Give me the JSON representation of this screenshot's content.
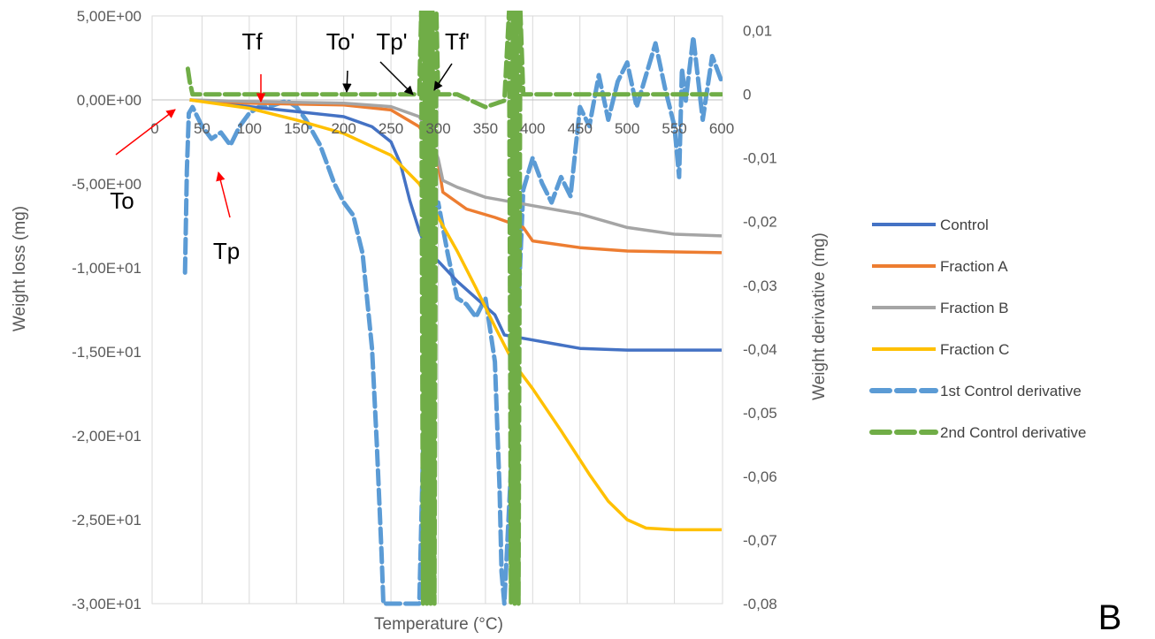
{
  "chart_data": {
    "type": "line",
    "panel_label": "B",
    "xlabel": "Temperature (°C)",
    "ylabel_left": "Weight loss (mg)",
    "ylabel_right": "Weight derivative (mg)",
    "xlim": [
      0,
      600
    ],
    "ylim_left": [
      -30,
      5
    ],
    "ylim_right": [
      -0.08,
      0.013
    ],
    "x_ticks": [
      "0",
      "50",
      "100",
      "150",
      "200",
      "250",
      "300",
      "350",
      "400",
      "450",
      "500",
      "550",
      "600"
    ],
    "y_left_ticks": [
      "5,00E+00",
      "0,00E+00",
      "-5,00E+00",
      "-1,00E+01",
      "-1,50E+01",
      "-2,00E+01",
      "-2,50E+01",
      "-3,00E+01"
    ],
    "y_right_ticks": [
      "0,01",
      "0",
      "-0,01",
      "-0,02",
      "-0,03",
      "-0,04",
      "-0,05",
      "-0,06",
      "-0,07",
      "-0,08"
    ],
    "grid": "vertical",
    "legend_position": "right",
    "series": [
      {
        "name": "Control",
        "axis": "left",
        "color": "#4472C4",
        "style": "solid",
        "x": [
          37,
          100,
          150,
          200,
          230,
          250,
          260,
          270,
          280,
          290,
          300,
          320,
          340,
          360,
          370,
          400,
          450,
          500,
          550,
          600
        ],
        "y": [
          0,
          -0.4,
          -0.7,
          -1.0,
          -1.6,
          -2.5,
          -3.8,
          -6.0,
          -7.8,
          -9.2,
          -9.6,
          -10.8,
          -11.8,
          -12.8,
          -14.0,
          -14.3,
          -14.8,
          -14.9,
          -14.9,
          -14.9
        ]
      },
      {
        "name": "Fraction A",
        "axis": "left",
        "color": "#ED7D31",
        "style": "solid",
        "x": [
          37,
          100,
          200,
          250,
          280,
          290,
          300,
          305,
          330,
          360,
          390,
          400,
          450,
          500,
          600
        ],
        "y": [
          0,
          -0.2,
          -0.3,
          -0.6,
          -1.6,
          -2.5,
          -3.8,
          -5.5,
          -6.5,
          -7.0,
          -7.6,
          -8.4,
          -8.8,
          -9.0,
          -9.1
        ]
      },
      {
        "name": "Fraction B",
        "axis": "left",
        "color": "#A5A5A5",
        "style": "solid",
        "x": [
          37,
          100,
          200,
          250,
          280,
          290,
          300,
          305,
          320,
          350,
          400,
          450,
          500,
          550,
          600
        ],
        "y": [
          0,
          -0.1,
          -0.2,
          -0.4,
          -1.0,
          -2.0,
          -3.5,
          -4.8,
          -5.2,
          -5.8,
          -6.3,
          -6.8,
          -7.6,
          -8.0,
          -8.1
        ]
      },
      {
        "name": "Fraction C",
        "axis": "left",
        "color": "#FFC000",
        "style": "solid",
        "x": [
          37,
          100,
          150,
          200,
          250,
          280,
          300,
          320,
          340,
          360,
          380,
          400,
          430,
          460,
          480,
          500,
          520,
          550,
          600
        ],
        "y": [
          0,
          -0.5,
          -1.2,
          -2.0,
          -3.3,
          -5.0,
          -7.0,
          -9.0,
          -11.2,
          -13.5,
          -15.7,
          -17.2,
          -19.7,
          -22.3,
          -23.9,
          -25.0,
          -25.5,
          -25.6,
          -25.6
        ]
      },
      {
        "name": "1st Control derivative",
        "axis": "right",
        "color": "#5B9BD5",
        "style": "dashed",
        "x": [
          32,
          34,
          36,
          40,
          50,
          60,
          70,
          80,
          90,
          100,
          110,
          120,
          140,
          150,
          160,
          175,
          190,
          200,
          210,
          220,
          230,
          235,
          240,
          242,
          250,
          260,
          270,
          280,
          290,
          300,
          310,
          320,
          330,
          340,
          350,
          360,
          362,
          365,
          367,
          370,
          375,
          380,
          390,
          400,
          410,
          420,
          430,
          440,
          450,
          460,
          470,
          480,
          490,
          500,
          510,
          520,
          530,
          540,
          550,
          555,
          558,
          562,
          570,
          580,
          590,
          600
        ],
        "y": [
          -0.028,
          -0.012,
          -0.003,
          -0.002,
          -0.005,
          -0.007,
          -0.006,
          -0.008,
          -0.005,
          -0.003,
          -0.002,
          -0.002,
          -0.001,
          -0.002,
          -0.004,
          -0.008,
          -0.014,
          -0.017,
          -0.019,
          -0.025,
          -0.04,
          -0.055,
          -0.072,
          -0.08,
          -0.08,
          -0.08,
          -0.08,
          -0.08,
          -0.02,
          -0.017,
          -0.025,
          -0.032,
          -0.033,
          -0.035,
          -0.032,
          -0.042,
          -0.05,
          -0.062,
          -0.075,
          -0.08,
          -0.065,
          -0.05,
          -0.015,
          -0.01,
          -0.014,
          -0.017,
          -0.013,
          -0.016,
          -0.002,
          -0.005,
          0.003,
          -0.004,
          0.002,
          0.005,
          -0.002,
          0.003,
          0.008,
          0.001,
          -0.005,
          -0.013,
          0.004,
          -0.001,
          0.009,
          -0.004,
          0.006,
          0.002
        ]
      },
      {
        "name": "2nd Control derivative",
        "axis": "right",
        "color": "#70AD47",
        "style": "dashed",
        "x": [
          35,
          37,
          40,
          50,
          100,
          150,
          200,
          250,
          270,
          280,
          282,
          284,
          286,
          288,
          290,
          292,
          294,
          296,
          298,
          300,
          320,
          350,
          370,
          375,
          377,
          379,
          381,
          383,
          385,
          387,
          390,
          400,
          450,
          500,
          550,
          600
        ],
        "y": [
          0.004,
          0.002,
          0.0,
          0.0,
          0.0,
          0.0,
          0.0,
          0.0,
          0.0,
          0.0,
          0.013,
          -0.08,
          0.013,
          -0.08,
          0.013,
          -0.08,
          0.013,
          -0.08,
          0.013,
          0.0,
          0.0,
          -0.002,
          -0.001,
          0.013,
          -0.08,
          0.013,
          -0.08,
          0.013,
          -0.08,
          0.013,
          0.0,
          0.0,
          0.0,
          0.0,
          0.0,
          0.0
        ]
      }
    ],
    "annotations": [
      {
        "text": "To",
        "arrow_color": "#FF0000"
      },
      {
        "text": "Tp",
        "arrow_color": "#FF0000"
      },
      {
        "text": "Tf",
        "arrow_color": "#FF0000"
      },
      {
        "text": "To'",
        "arrow_color": "#000000"
      },
      {
        "text": "Tp'",
        "arrow_color": "#000000"
      },
      {
        "text": "Tf'",
        "arrow_color": "#000000"
      }
    ]
  }
}
